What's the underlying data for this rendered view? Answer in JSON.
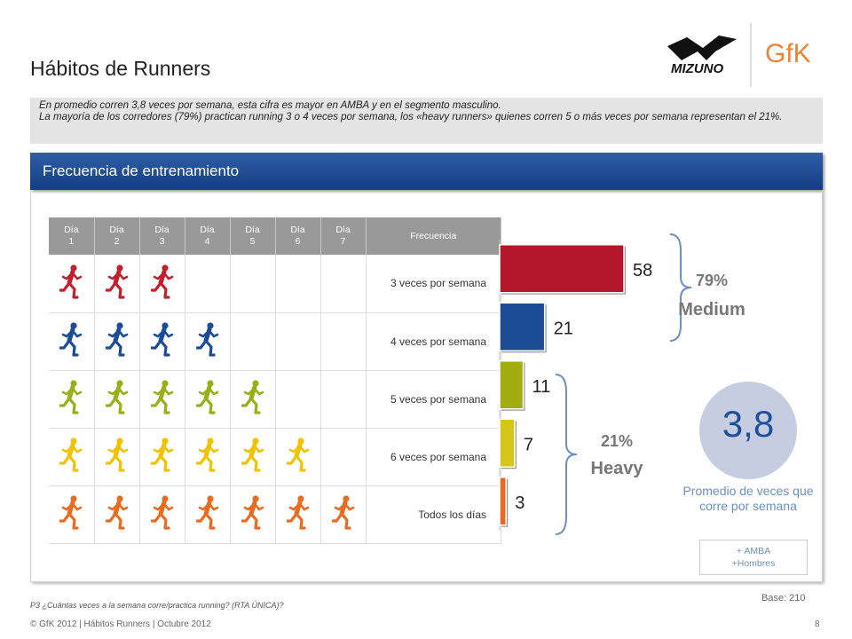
{
  "title": "Hábitos de Runners",
  "summary": {
    "line1": "En promedio corren 3,8 veces por semana, esta cifra es mayor en AMBA y en el segmento masculino.",
    "line2": "La mayoría de los corredores (79%) practican running 3 o 4 veces por semana, los «heavy runners» quienes corren 5 o más veces por semana representan el 21%."
  },
  "section_title": "Frecuencia de entrenamiento",
  "logos": {
    "brand1": "MIZUNO",
    "brand2": "GfK"
  },
  "table": {
    "headers": [
      "Día 1",
      "Día 2",
      "Día 3",
      "Día 4",
      "Día 5",
      "Día 6",
      "Día 7",
      "Frecuencia"
    ],
    "rows": [
      {
        "label": "3 veces por semana",
        "runners": 3,
        "color": "#c3202e"
      },
      {
        "label": "4 veces por semana",
        "runners": 4,
        "color": "#1d4c96"
      },
      {
        "label": "5 veces por semana",
        "runners": 5,
        "color": "#9aae17"
      },
      {
        "label": "6 veces por semana",
        "runners": 6,
        "color": "#f2c200"
      },
      {
        "label": "Todos los días",
        "runners": 7,
        "color": "#ea6a1f"
      }
    ]
  },
  "chart_data": {
    "type": "bar",
    "orientation": "horizontal",
    "categories": [
      "3 veces por semana",
      "4 veces por semana",
      "5 veces por semana",
      "6 veces por semana",
      "Todos los días"
    ],
    "values": [
      58,
      21,
      11,
      7,
      3
    ],
    "value_labels": [
      "58",
      "21",
      "11",
      "7",
      "3"
    ],
    "colors": [
      "#b5172a",
      "#1d4c96",
      "#a1ad10",
      "#d7c61a",
      "#ea6a1f"
    ],
    "xlim": [
      0,
      58
    ]
  },
  "groups": [
    {
      "pct": "79%",
      "label": "Medium"
    },
    {
      "pct": "21%",
      "label": "Heavy"
    }
  ],
  "average": {
    "value": "3,8",
    "label": "Promedio de veces que corre por semana",
    "note_line1": "+ AMBA",
    "note_line2": "+Hombres"
  },
  "base": "Base: 210",
  "question": "P3 ¿Cuántas veces a la semana corre/practica running? (RTA ÚNICA)?",
  "footer": "© GfK 2012 | Hábitos Runners | Octubre 2012",
  "page_number": "8"
}
